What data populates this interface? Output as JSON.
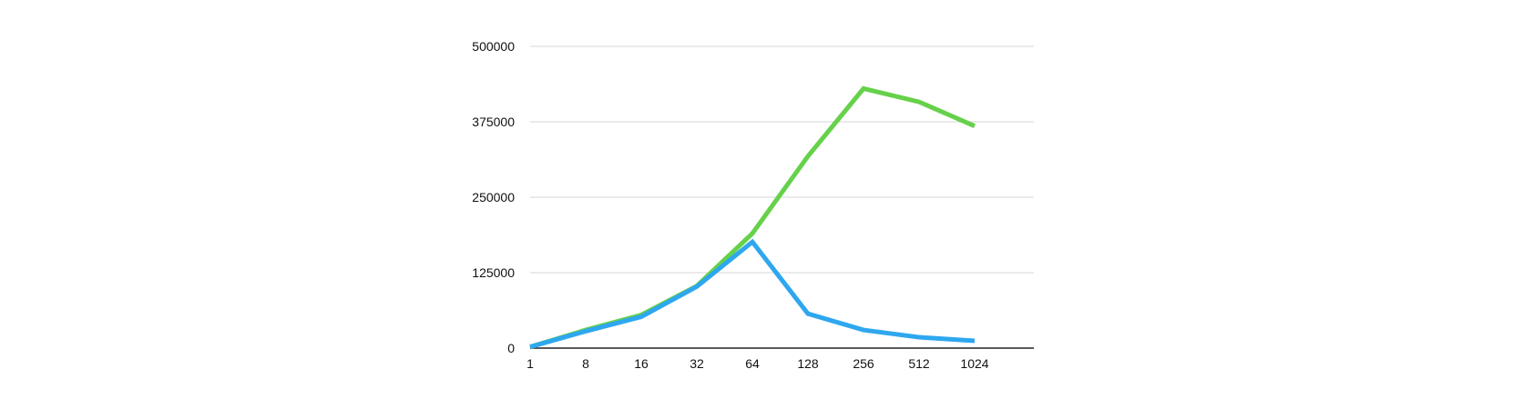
{
  "chart_data": {
    "type": "line",
    "title": "",
    "xlabel": "",
    "ylabel": "",
    "categories": [
      "1",
      "8",
      "16",
      "32",
      "64",
      "128",
      "256",
      "512",
      "1024"
    ],
    "ylim": [
      0,
      500000
    ],
    "yticks": [
      "0",
      "125000",
      "250000",
      "375000",
      "500000"
    ],
    "grid": true,
    "legend": "none",
    "series": [
      {
        "color": "#66d14a",
        "values": [
          2000,
          30000,
          55000,
          103000,
          190000,
          318000,
          430000,
          408000,
          368000
        ]
      },
      {
        "color": "#2ea7ef",
        "values": [
          2000,
          28000,
          52000,
          102000,
          176000,
          57000,
          30000,
          18000,
          12000
        ]
      }
    ]
  }
}
